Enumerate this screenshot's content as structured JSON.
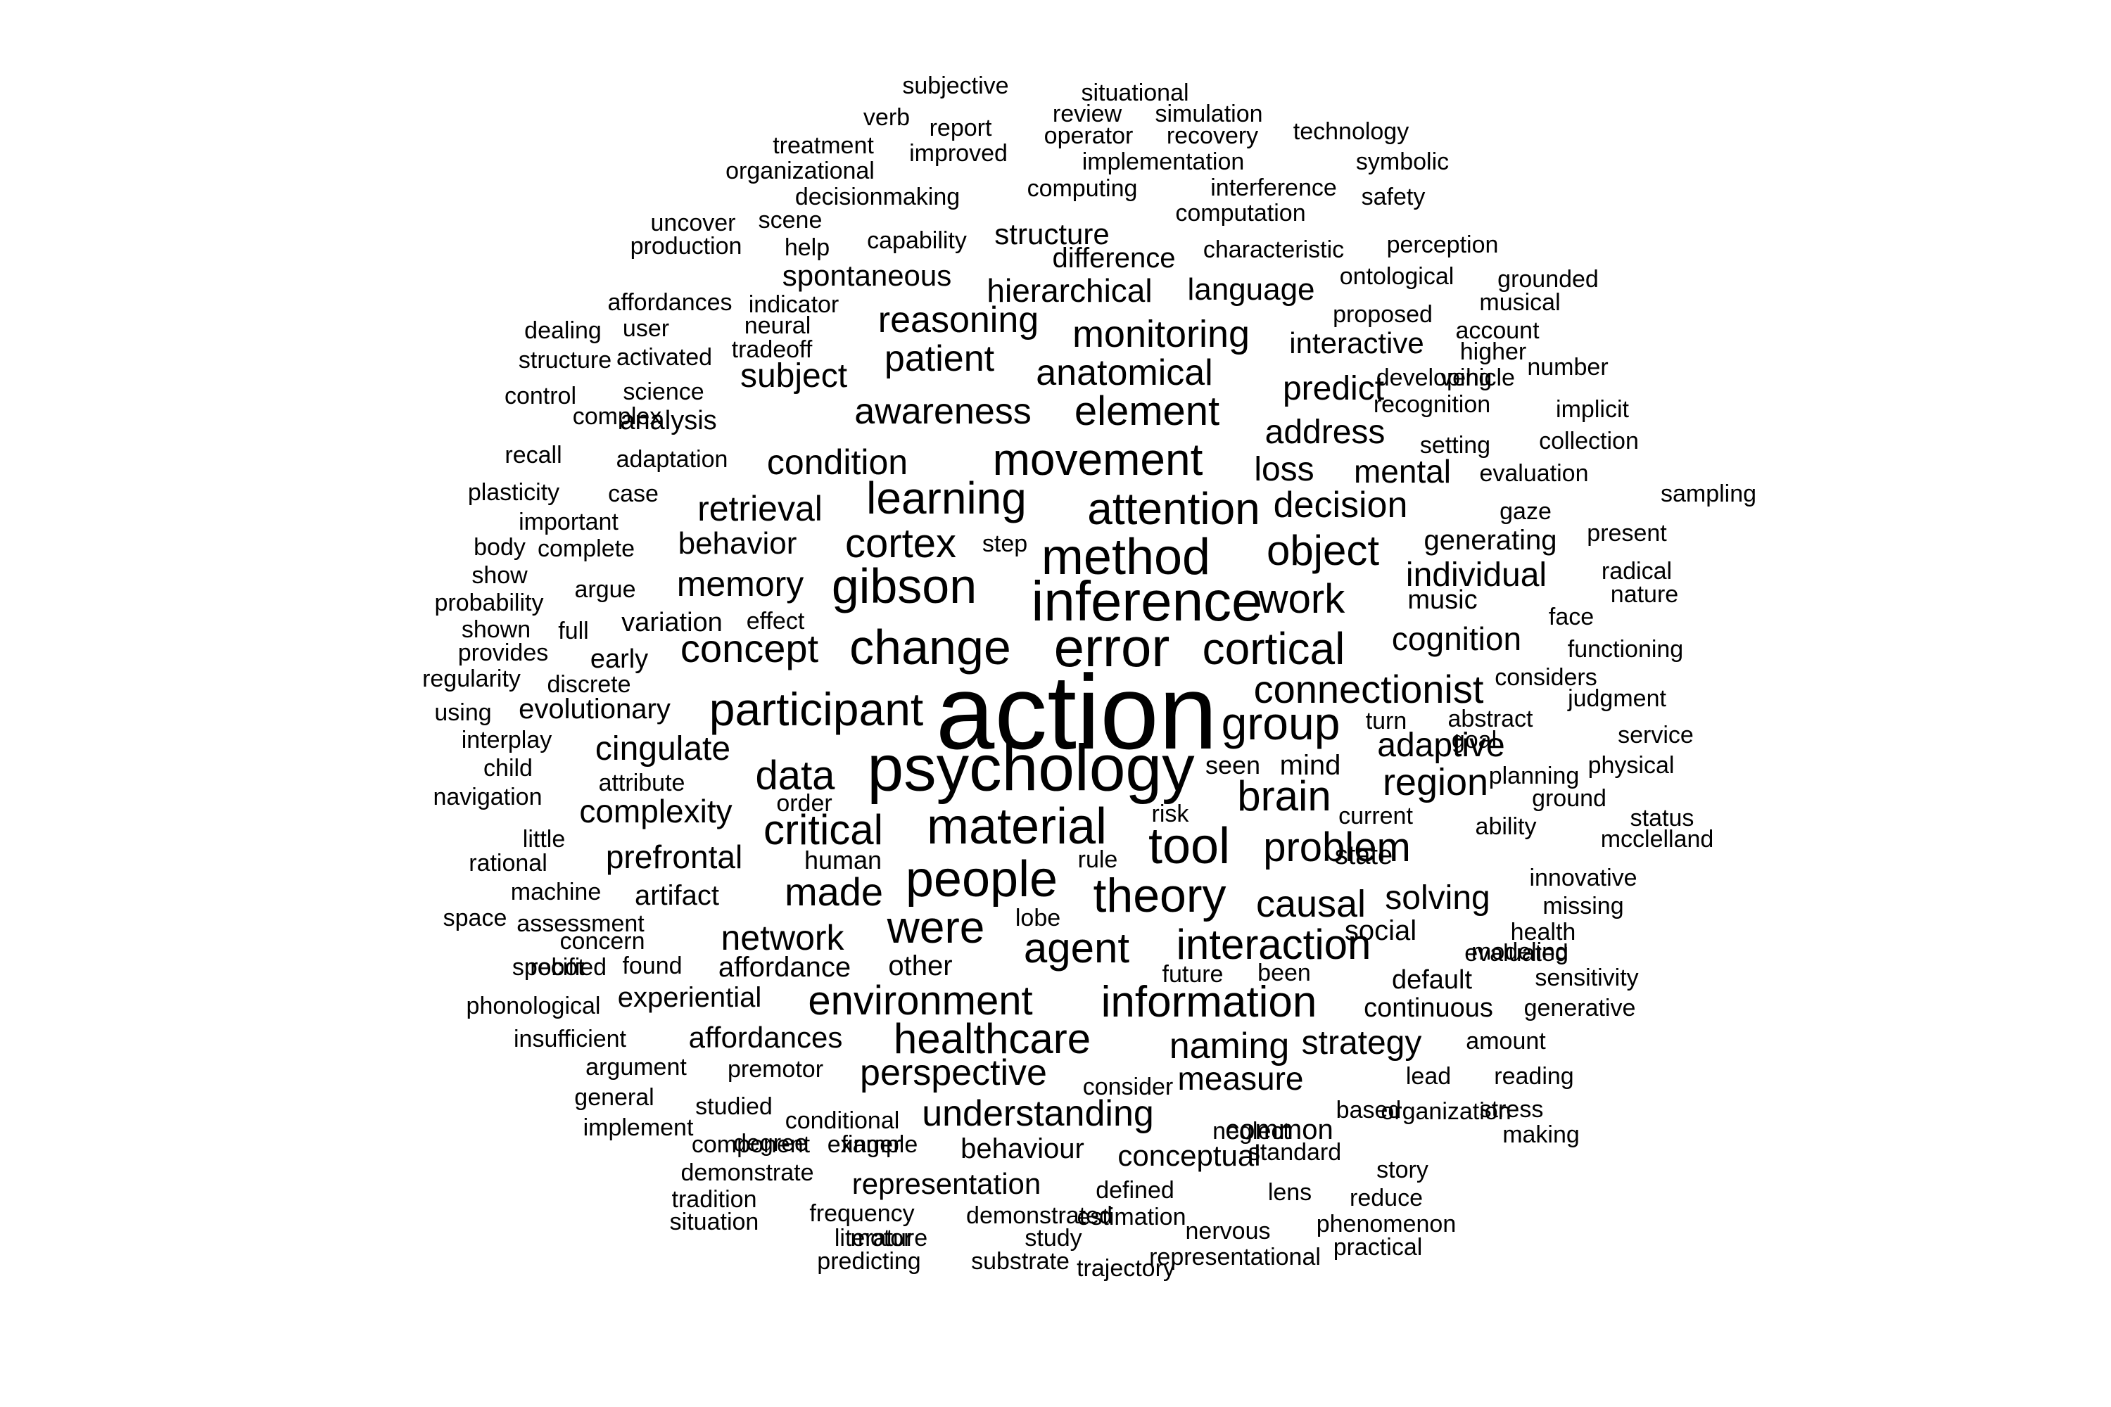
{
  "text_color": "#000000",
  "background_color": "#ffffff",
  "words": [
    "action",
    "psychology",
    "inference",
    "error",
    "change",
    "method",
    "material",
    "people",
    "gibson",
    "theory",
    "tool",
    "movement",
    "attention",
    "learning",
    "participant",
    "group",
    "cortical",
    "connectionist",
    "cortex",
    "object",
    "were",
    "critical",
    "brain",
    "interaction",
    "information",
    "environment",
    "healthcare",
    "problem",
    "element",
    "awareness",
    "data",
    "agent",
    "anatomical",
    "work",
    "concept",
    "reasoning",
    "made",
    "monitoring",
    "patient",
    "decision",
    "region",
    "memory",
    "retrieval",
    "condition",
    "causal",
    "adaptive",
    "individual",
    "hierarchical",
    "naming",
    "understanding",
    "perspective",
    "cognition",
    "strategy",
    "network",
    "measure",
    "loss",
    "address",
    "predict",
    "mental",
    "cingulate",
    "complexity",
    "solving",
    "spontaneous",
    "language",
    "subject",
    "prefrontal",
    "behavior",
    "generating",
    "interactive",
    "affordances",
    "structure",
    "difference",
    "evolutionary",
    "conceptual",
    "representation",
    "behaviour",
    "affordance",
    "experiential",
    "common",
    "continuous",
    "default",
    "social",
    "artifact",
    "analysis",
    "other",
    "human",
    "music",
    "variation",
    "early",
    "state",
    "mind",
    "seen",
    "subjective",
    "situational",
    "verb",
    "review",
    "simulation",
    "report",
    "operator",
    "recovery",
    "technology",
    "treatment",
    "improved",
    "implementation",
    "organizational",
    "symbolic",
    "computing",
    "interference",
    "decisionmaking",
    "safety",
    "computation",
    "uncover",
    "scene",
    "capability",
    "characteristic",
    "perception",
    "production",
    "help",
    "ontological",
    "grounded",
    "affordances",
    "indicator",
    "musical",
    "proposed",
    "dealing",
    "user",
    "neural",
    "account",
    "tradeoff",
    "activated",
    "higher",
    "number",
    "structure",
    "vehicle",
    "developing",
    "control",
    "science",
    "complex",
    "recognition",
    "implicit",
    "setting",
    "collection",
    "recall",
    "adaptation",
    "evaluation",
    "plasticity",
    "case",
    "sampling",
    "gaze",
    "important",
    "present",
    "step",
    "body",
    "complete",
    "radical",
    "show",
    "argue",
    "nature",
    "probability",
    "effect",
    "face",
    "shown",
    "full",
    "functioning",
    "provides",
    "considers",
    "regularity",
    "discrete",
    "judgment",
    "abstract",
    "using",
    "turn",
    "interplay",
    "service",
    "goal",
    "child",
    "planning",
    "physical",
    "attribute",
    "navigation",
    "order",
    "ground",
    "risk",
    "current",
    "status",
    "ability",
    "little",
    "mcclelland",
    "rational",
    "rule",
    "innovative",
    "machine",
    "missing",
    "lobe",
    "space",
    "assessment",
    "health",
    "concern",
    "future",
    "evaluated",
    "robot",
    "found",
    "been",
    "modeling",
    "specified",
    "sensitivity",
    "phonological",
    "generative",
    "insufficient",
    "amount",
    "argument",
    "premotor",
    "lead",
    "reading",
    "consider",
    "general",
    "studied",
    "based",
    "stress",
    "conditional",
    "organization",
    "implement",
    "degree",
    "finger",
    "neglect",
    "making",
    "component",
    "example",
    "standard",
    "story",
    "demonstrate",
    "defined",
    "lens",
    "tradition",
    "reduce",
    "frequency",
    "demonstrated",
    "estimation",
    "situation",
    "phenomenon",
    "literature",
    "nervous",
    "motor",
    "study",
    "practical",
    "predicting",
    "substrate",
    "representational",
    "trajectory"
  ]
}
